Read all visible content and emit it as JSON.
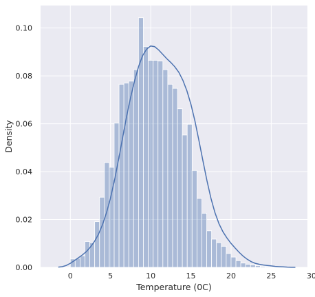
{
  "chart_data": {
    "type": "bar",
    "title": "",
    "xlabel": "Temperature (0C)",
    "ylabel": "Density",
    "xlim": [
      -3.7,
      29.5
    ],
    "ylim": [
      0,
      0.1094
    ],
    "x_ticks": [
      0,
      5,
      10,
      15,
      20,
      25,
      30
    ],
    "x_tick_labels": [
      "0",
      "5",
      "10",
      "15",
      "20",
      "25",
      "30"
    ],
    "y_ticks": [
      0.0,
      0.02,
      0.04,
      0.06,
      0.08,
      0.1
    ],
    "y_tick_labels": [
      "0.00",
      "0.02",
      "0.04",
      "0.06",
      "0.08",
      "0.10"
    ],
    "grid": true,
    "legend": "none",
    "colors": {
      "plot_background": "#eaeaf2",
      "grid": "#ffffff",
      "bar_fill": "#4c72b0",
      "bar_opacity": 0.4,
      "kde_line": "#4c72b0"
    },
    "histogram": {
      "bin_edges": [
        0.0,
        0.606,
        1.212,
        1.818,
        2.424,
        3.03,
        3.636,
        4.242,
        4.848,
        5.454,
        6.06,
        6.666,
        7.272,
        7.878,
        8.484,
        9.09,
        9.696,
        10.302,
        10.908,
        11.514,
        12.12,
        12.726,
        13.332,
        13.938,
        14.544,
        15.15,
        15.756,
        16.362,
        16.968,
        17.574,
        18.18,
        18.786,
        19.392,
        19.998,
        20.604,
        21.21,
        21.816,
        22.422,
        23.028,
        23.634,
        24.24,
        24.846,
        25.452
      ],
      "density": [
        0.0035,
        0.0038,
        0.0048,
        0.0108,
        0.0103,
        0.0191,
        0.0293,
        0.0438,
        0.0418,
        0.0603,
        0.0765,
        0.077,
        0.0778,
        0.0826,
        0.1043,
        0.0923,
        0.0865,
        0.0865,
        0.0862,
        0.0826,
        0.0765,
        0.0748,
        0.0663,
        0.0553,
        0.0598,
        0.0405,
        0.0288,
        0.0226,
        0.0153,
        0.0118,
        0.0103,
        0.0088,
        0.0058,
        0.0043,
        0.0028,
        0.0018,
        0.0013,
        0.001,
        0.0007,
        0.0004,
        0.0003,
        0.0001
      ]
    },
    "kde": {
      "x": [
        -1.5,
        -1.0,
        -0.5,
        0.0,
        0.5,
        1.0,
        1.5,
        2.0,
        2.5,
        3.0,
        3.5,
        4.0,
        4.5,
        5.0,
        5.5,
        6.0,
        6.5,
        7.0,
        7.5,
        8.0,
        8.5,
        9.0,
        9.5,
        10.0,
        10.5,
        11.0,
        11.5,
        12.0,
        12.5,
        13.0,
        13.5,
        14.0,
        14.5,
        15.0,
        15.5,
        16.0,
        16.5,
        17.0,
        17.5,
        18.0,
        18.5,
        19.0,
        19.5,
        20.0,
        20.5,
        21.0,
        21.5,
        22.0,
        22.5,
        23.0,
        23.5,
        24.0,
        24.5,
        25.0,
        25.5,
        26.0,
        26.5,
        27.0,
        27.5,
        28.0
      ],
      "y": [
        0.0001,
        0.0003,
        0.0008,
        0.0017,
        0.0028,
        0.004,
        0.0052,
        0.0066,
        0.0085,
        0.0108,
        0.0138,
        0.0178,
        0.0228,
        0.029,
        0.0365,
        0.045,
        0.054,
        0.063,
        0.071,
        0.078,
        0.084,
        0.0885,
        0.0912,
        0.0925,
        0.0922,
        0.0908,
        0.089,
        0.0872,
        0.0856,
        0.0838,
        0.0815,
        0.0782,
        0.0738,
        0.0682,
        0.0612,
        0.053,
        0.0445,
        0.0362,
        0.0288,
        0.0228,
        0.0182,
        0.0148,
        0.0122,
        0.01,
        0.0081,
        0.0063,
        0.0047,
        0.0034,
        0.0024,
        0.0017,
        0.0013,
        0.001,
        0.0008,
        0.0006,
        0.0004,
        0.0003,
        0.0002,
        0.0001,
        5e-05,
        2e-05
      ]
    }
  }
}
